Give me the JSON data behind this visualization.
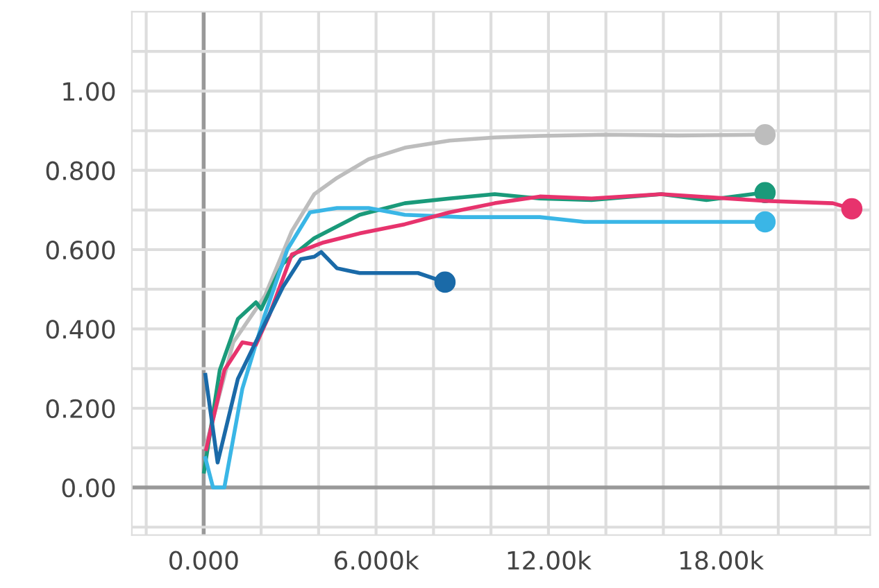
{
  "chart_data": {
    "type": "line",
    "xlim": [
      -2500,
      23200
    ],
    "ylim": [
      -0.12,
      1.2
    ],
    "xticks": [
      {
        "value": -2000,
        "label": null
      },
      {
        "value": 0,
        "label": "0.000"
      },
      {
        "value": 2000,
        "label": null
      },
      {
        "value": 4000,
        "label": null
      },
      {
        "value": 6000,
        "label": "6.000k"
      },
      {
        "value": 8000,
        "label": null
      },
      {
        "value": 10000,
        "label": null
      },
      {
        "value": 12000,
        "label": "12.00k"
      },
      {
        "value": 14000,
        "label": null
      },
      {
        "value": 16000,
        "label": null
      },
      {
        "value": 18000,
        "label": "18.00k"
      },
      {
        "value": 20000,
        "label": null
      },
      {
        "value": 22000,
        "label": null
      }
    ],
    "yticks": [
      {
        "value": -0.1,
        "label": null
      },
      {
        "value": 0,
        "label": "0.00"
      },
      {
        "value": 0.1,
        "label": null
      },
      {
        "value": 0.2,
        "label": "0.200"
      },
      {
        "value": 0.3,
        "label": null
      },
      {
        "value": 0.4,
        "label": "0.400"
      },
      {
        "value": 0.5,
        "label": null
      },
      {
        "value": 0.6,
        "label": "0.600"
      },
      {
        "value": 0.7,
        "label": null
      },
      {
        "value": 0.8,
        "label": "0.800"
      },
      {
        "value": 0.9,
        "label": null
      },
      {
        "value": 1,
        "label": "1.00"
      },
      {
        "value": 1.1,
        "label": null
      }
    ],
    "grid": true,
    "line_style": "solid",
    "series": [
      {
        "color": "#bdbdbd",
        "x": [
          60,
          1030,
          2130,
          3070,
          3850,
          4640,
          5740,
          7000,
          8560,
          10130,
          11700,
          14000,
          16500,
          19540
        ],
        "values": [
          0.1,
          0.366,
          0.483,
          0.647,
          0.74,
          0.781,
          0.828,
          0.857,
          0.875,
          0.883,
          0.887,
          0.89,
          0.888,
          0.89
        ]
      },
      {
        "color": "#1a9a7a",
        "x": [
          14,
          560,
          1190,
          1820,
          2000,
          2760,
          3850,
          5430,
          7000,
          8560,
          10130,
          11700,
          13500,
          15930,
          17500,
          19540
        ],
        "values": [
          0.04,
          0.296,
          0.425,
          0.467,
          0.45,
          0.565,
          0.629,
          0.688,
          0.717,
          0.729,
          0.74,
          0.729,
          0.725,
          0.74,
          0.725,
          0.744
        ]
      },
      {
        "color": "#3ab6e6",
        "x": [
          60,
          325,
          720,
          1345,
          2130,
          2910,
          3700,
          4640,
          5740,
          7000,
          9000,
          11700,
          13250,
          16000,
          19540
        ],
        "values": [
          0.074,
          0.0,
          0.0,
          0.249,
          0.436,
          0.6,
          0.694,
          0.705,
          0.705,
          0.688,
          0.682,
          0.682,
          0.67,
          0.67,
          0.67
        ]
      },
      {
        "color": "#e7336d",
        "x": [
          90,
          720,
          1345,
          1820,
          2290,
          3070,
          4170,
          5430,
          7000,
          8560,
          10130,
          11700,
          13500,
          15930,
          19540,
          21900,
          22560
        ],
        "values": [
          0.097,
          0.296,
          0.366,
          0.36,
          0.436,
          0.588,
          0.618,
          0.641,
          0.664,
          0.694,
          0.717,
          0.734,
          0.729,
          0.74,
          0.723,
          0.717,
          0.703
        ]
      },
      {
        "color": "#1a6aa8",
        "x": [
          60,
          485,
          1190,
          1970,
          2760,
          3380,
          3850,
          4090,
          4640,
          5430,
          7460,
          8400
        ],
        "values": [
          0.284,
          0.063,
          0.274,
          0.39,
          0.506,
          0.576,
          0.582,
          0.594,
          0.553,
          0.541,
          0.541,
          0.518
        ]
      }
    ]
  }
}
